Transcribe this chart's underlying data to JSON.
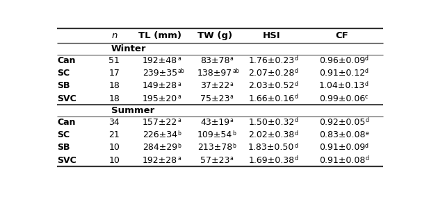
{
  "col_headers": [
    "n",
    "TL (mm)",
    "TW (g)",
    "HSI",
    "CF"
  ],
  "row_labels": [
    "Can",
    "SC",
    "SB",
    "SVC"
  ],
  "winter_data": [
    [
      "51",
      "192±48^a",
      "83±78^a",
      "1.76±0.23^d",
      "0.96±0.09^d"
    ],
    [
      "17",
      "239±35^ab",
      "138±97^ab",
      "2.07±0.28^d",
      "0.91±0.12^d"
    ],
    [
      "18",
      "149±28^a",
      "37±22^a",
      "2.03±0.52^d",
      "1.04±0.13^d"
    ],
    [
      "18",
      "195±20^a",
      "75±23^a",
      "1.66±0.16^d",
      "0.99±0.06^c"
    ]
  ],
  "summer_data": [
    [
      "34",
      "157±22^a",
      "43±19^a",
      "1.50±0.32^d",
      "0.92±0.05^d"
    ],
    [
      "21",
      "226±34^b",
      "109±54^b",
      "2.02±0.38^d",
      "0.83±0.08^e"
    ],
    [
      "10",
      "284±29^b",
      "213±78^b",
      "1.83±0.50^d",
      "0.91±0.09^d"
    ],
    [
      "10",
      "192±28^a",
      "57±23^a",
      "1.69±0.38^d",
      "0.91±0.08^d"
    ]
  ],
  "bg_color": "#ffffff",
  "line_color": "#555555",
  "thick_line_color": "#333333"
}
